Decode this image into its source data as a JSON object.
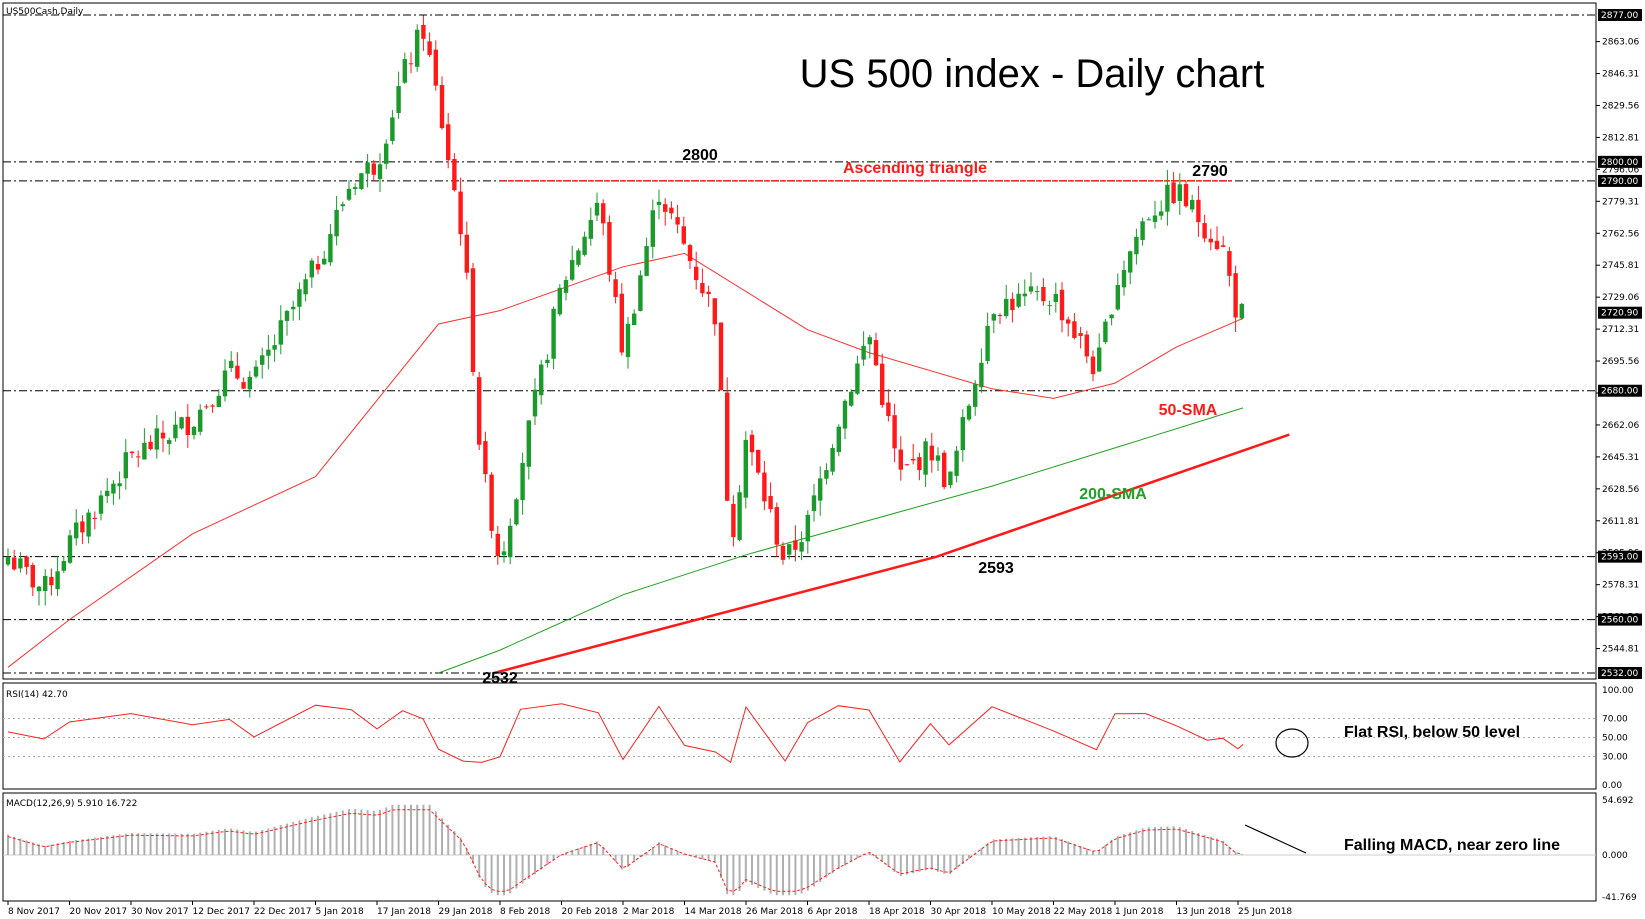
{
  "window": {
    "symbol_label": "US500Cash,Daily",
    "title": "US 500 index - Daily chart"
  },
  "colors": {
    "bull": "#1a9a2a",
    "bear": "#ff1a1a",
    "sma50": "#ff3030",
    "sma200": "#22a022",
    "rsi": "#ff2020",
    "macd_hist": "#b0b0b0",
    "macd_signal": "#ff2020",
    "axis_label_bg": "#000000"
  },
  "main_axis": {
    "ticks": [
      "2863.06",
      "2846.31",
      "2829.56",
      "2812.81",
      "2796.06",
      "2779.31",
      "2762.56",
      "2745.81",
      "2729.06",
      "2712.31",
      "2695.56",
      "2678.81",
      "2662.06",
      "2645.31",
      "2628.56",
      "2611.81",
      "2595.06",
      "2578.31",
      "2561.56",
      "2544.81"
    ],
    "highlighted": [
      "2877.00",
      "2800.00",
      "2790.00",
      "2720.90",
      "2680.00",
      "2593.00",
      "2560.00",
      "2532.00"
    ]
  },
  "annotations": {
    "triangle": "Ascending triangle",
    "peak1": "2800",
    "peak2": "2790",
    "low1": "2532",
    "low2": "2593",
    "sma50": "50-SMA",
    "sma200": "200-SMA",
    "rsi_note": "Flat RSI, below 50 level",
    "macd_note": "Falling MACD, near zero line"
  },
  "rsi": {
    "label": "RSI(14) 42.70",
    "ticks": [
      "100.00",
      "70.00",
      "50.00",
      "30.00",
      "0.00"
    ]
  },
  "macd": {
    "label": "MACD(12,26,9) 5.910 16.722",
    "ticks": [
      "54.692",
      "0.000",
      "-41.769"
    ]
  },
  "x_axis": {
    "labels": [
      "8 Nov 2017",
      "20 Nov 2017",
      "30 Nov 2017",
      "12 Dec 2017",
      "22 Dec 2017",
      "5 Jan 2018",
      "17 Jan 2018",
      "29 Jan 2018",
      "8 Feb 2018",
      "20 Feb 2018",
      "2 Mar 2018",
      "14 Mar 2018",
      "26 Mar 2018",
      "6 Apr 2018",
      "18 Apr 2018",
      "30 Apr 2018",
      "10 May 2018",
      "22 May 2018",
      "1 Jun 2018",
      "13 Jun 2018",
      "25 Jun 2018"
    ]
  },
  "chart_data": {
    "type": "candlestick",
    "title": "US 500 index - Daily chart",
    "symbol": "US500Cash,Daily",
    "y_range": [
      2532,
      2877
    ],
    "horizontal_levels": [
      2877,
      2800,
      2790,
      2680,
      2593,
      2560,
      2532
    ],
    "last_price": 2720.9,
    "waypoints": [
      {
        "date": "8 Nov 2017",
        "close": 2593
      },
      {
        "date": "15 Nov 2017",
        "close": 2575
      },
      {
        "date": "20 Nov 2017",
        "close": 2600
      },
      {
        "date": "30 Nov 2017",
        "close": 2645
      },
      {
        "date": "12 Dec 2017",
        "close": 2665
      },
      {
        "date": "18 Dec 2017",
        "close": 2690
      },
      {
        "date": "22 Dec 2017",
        "close": 2685
      },
      {
        "date": "5 Jan 2018",
        "close": 2745
      },
      {
        "date": "12 Jan 2018",
        "close": 2790
      },
      {
        "date": "17 Jan 2018",
        "close": 2800
      },
      {
        "date": "22 Jan 2018",
        "close": 2845
      },
      {
        "date": "26 Jan 2018",
        "close": 2870
      },
      {
        "date": "29 Jan 2018",
        "close": 2830
      },
      {
        "date": "2 Feb 2018",
        "close": 2760
      },
      {
        "date": "5 Feb 2018",
        "close": 2640
      },
      {
        "date": "8 Feb 2018",
        "close": 2590
      },
      {
        "date": "12 Feb 2018",
        "close": 2640
      },
      {
        "date": "20 Feb 2018",
        "close": 2735
      },
      {
        "date": "26 Feb 2018",
        "close": 2780
      },
      {
        "date": "2 Mar 2018",
        "close": 2700
      },
      {
        "date": "9 Mar 2018",
        "close": 2785
      },
      {
        "date": "14 Mar 2018",
        "close": 2755
      },
      {
        "date": "20 Mar 2018",
        "close": 2720
      },
      {
        "date": "23 Mar 2018",
        "close": 2600
      },
      {
        "date": "26 Mar 2018",
        "close": 2655
      },
      {
        "date": "2 Apr 2018",
        "close": 2590
      },
      {
        "date": "6 Apr 2018",
        "close": 2610
      },
      {
        "date": "12 Apr 2018",
        "close": 2665
      },
      {
        "date": "18 Apr 2018",
        "close": 2710
      },
      {
        "date": "24 Apr 2018",
        "close": 2635
      },
      {
        "date": "30 Apr 2018",
        "close": 2650
      },
      {
        "date": "3 May 2018",
        "close": 2630
      },
      {
        "date": "10 May 2018",
        "close": 2725
      },
      {
        "date": "22 May 2018",
        "close": 2730
      },
      {
        "date": "29 May 2018",
        "close": 2690
      },
      {
        "date": "1 Jun 2018",
        "close": 2735
      },
      {
        "date": "7 Jun 2018",
        "close": 2772
      },
      {
        "date": "13 Jun 2018",
        "close": 2785
      },
      {
        "date": "19 Jun 2018",
        "close": 2765
      },
      {
        "date": "22 Jun 2018",
        "close": 2755
      },
      {
        "date": "25 Jun 2018",
        "close": 2718
      },
      {
        "date": "26 Jun 2018",
        "close": 2721
      }
    ],
    "sma50": [
      {
        "date": "8 Nov 2017",
        "value": 2535
      },
      {
        "date": "20 Nov 2017",
        "value": 2560
      },
      {
        "date": "12 Dec 2017",
        "value": 2605
      },
      {
        "date": "5 Jan 2018",
        "value": 2635
      },
      {
        "date": "29 Jan 2018",
        "value": 2715
      },
      {
        "date": "8 Feb 2018",
        "value": 2722
      },
      {
        "date": "2 Mar 2018",
        "value": 2745
      },
      {
        "date": "14 Mar 2018",
        "value": 2752
      },
      {
        "date": "6 Apr 2018",
        "value": 2712
      },
      {
        "date": "18 Apr 2018",
        "value": 2700
      },
      {
        "date": "10 May 2018",
        "value": 2681
      },
      {
        "date": "22 May 2018",
        "value": 2676
      },
      {
        "date": "1 Jun 2018",
        "value": 2684
      },
      {
        "date": "13 Jun 2018",
        "value": 2703
      },
      {
        "date": "26 Jun 2018",
        "value": 2718
      }
    ],
    "sma200": [
      {
        "date": "29 Jan 2018",
        "value": 2532
      },
      {
        "date": "8 Feb 2018",
        "value": 2544
      },
      {
        "date": "2 Mar 2018",
        "value": 2573
      },
      {
        "date": "26 Mar 2018",
        "value": 2594
      },
      {
        "date": "18 Apr 2018",
        "value": 2612
      },
      {
        "date": "10 May 2018",
        "value": 2630
      },
      {
        "date": "1 Jun 2018",
        "value": 2650
      },
      {
        "date": "26 Jun 2018",
        "value": 2671
      }
    ],
    "trendline": [
      {
        "date": "7 Feb 2018",
        "value": 2532
      },
      {
        "date": "1 May 2018",
        "value": 2593
      },
      {
        "date": "5 Jul 2018",
        "value": 2657
      }
    ],
    "rsi_range": [
      0,
      100
    ],
    "rsi_levels": [
      70,
      50,
      30
    ],
    "rsi_last": 42.7,
    "macd_range": [
      -41.769,
      54.692
    ],
    "macd_main": 5.91,
    "macd_signal": 16.722
  }
}
